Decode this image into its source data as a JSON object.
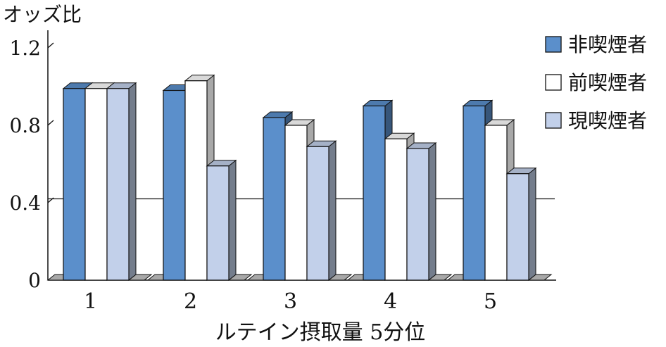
{
  "chart_data": {
    "type": "bar",
    "ylabel": "オッズ比",
    "xlabel": "ルテイン摂取量 5分位",
    "categories": [
      "1",
      "2",
      "3",
      "4",
      "5"
    ],
    "y_ticks": [
      "0",
      "0.4",
      "0.8",
      "1.2"
    ],
    "ylim": [
      0,
      1.2
    ],
    "reference_line": 0.42,
    "legend_position": "right",
    "series": [
      {
        "name": "非喫煙者",
        "color": "#5b8fcb",
        "values": [
          0.99,
          0.98,
          0.84,
          0.9,
          0.9
        ]
      },
      {
        "name": "前喫煙者",
        "color": "#ffffff",
        "values": [
          0.99,
          1.03,
          0.8,
          0.73,
          0.8
        ]
      },
      {
        "name": "現喫煙者",
        "color": "#c2d0ea",
        "values": [
          0.99,
          0.59,
          0.69,
          0.68,
          0.55
        ]
      }
    ]
  }
}
